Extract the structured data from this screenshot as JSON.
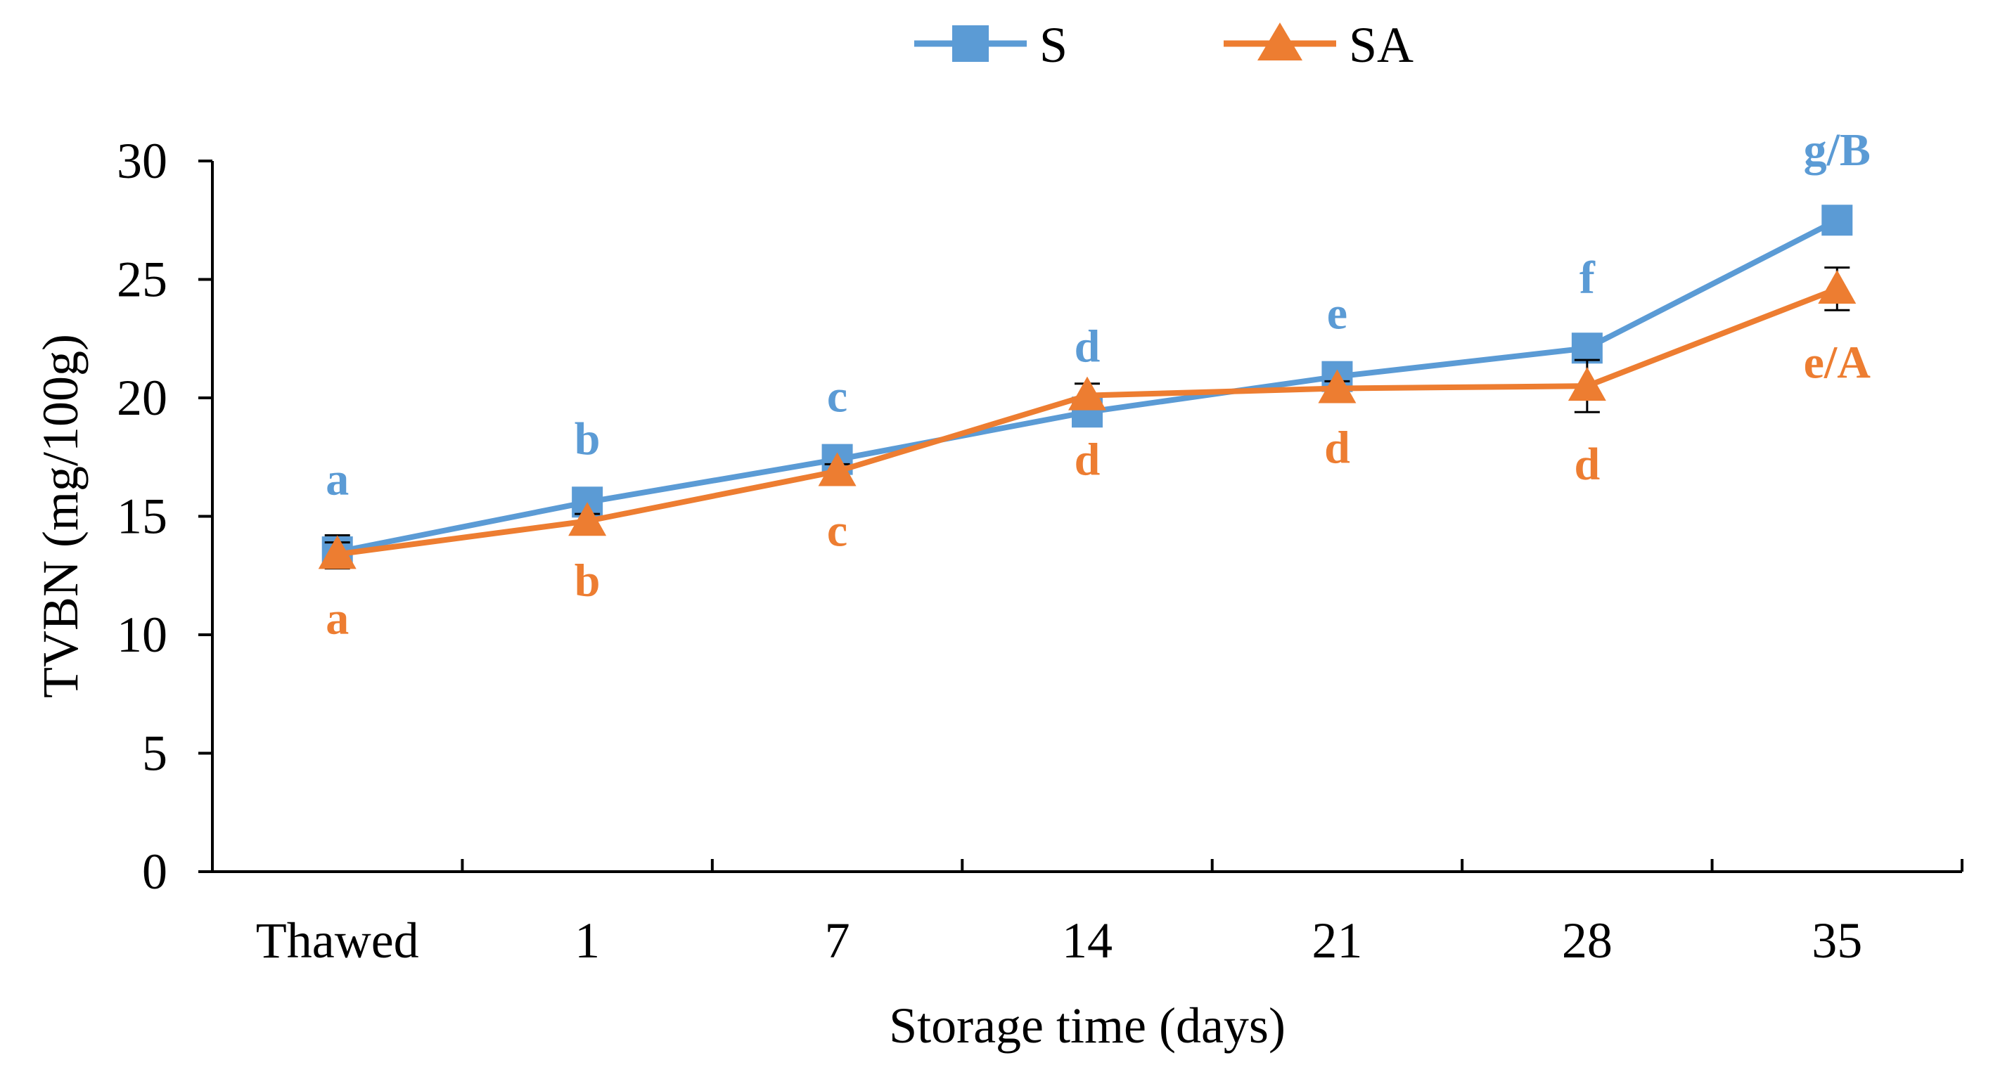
{
  "chart_data": {
    "type": "line",
    "title": "",
    "xlabel": "Storage time (days)",
    "ylabel": "TVBN (mg/100g)",
    "categories": [
      "Thawed",
      "1",
      "7",
      "14",
      "21",
      "28",
      "35"
    ],
    "ylim": [
      0,
      30
    ],
    "yticks": [
      "0",
      "5",
      "10",
      "15",
      "20",
      "25",
      "30"
    ],
    "grid": false,
    "legend_position": "top-center",
    "series": [
      {
        "name": "S",
        "color": "#5B9BD5",
        "marker": "square",
        "values": [
          13.5,
          15.6,
          17.4,
          19.4,
          20.9,
          22.1,
          27.5
        ],
        "errors": [
          0.7,
          0.3,
          0.3,
          0.4,
          0.3,
          0.6,
          0.6
        ],
        "significance_labels": [
          "a",
          "b",
          "c",
          "d",
          "e",
          "f",
          "g/B"
        ],
        "label_side": "above"
      },
      {
        "name": "SA",
        "color": "#ED7D31",
        "marker": "triangle",
        "values": [
          13.4,
          14.8,
          16.9,
          20.1,
          20.4,
          20.5,
          24.6
        ],
        "errors": [
          0.5,
          0.3,
          0.3,
          0.5,
          0.3,
          1.1,
          0.9
        ],
        "significance_labels": [
          "a",
          "b",
          "c",
          "d",
          "d",
          "d",
          "e/A"
        ],
        "label_side": "below"
      }
    ]
  }
}
